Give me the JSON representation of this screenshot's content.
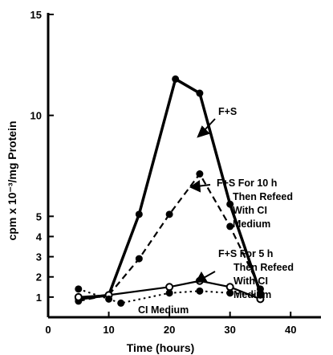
{
  "chart_data": {
    "type": "line",
    "title": "",
    "xlabel": "Time (hours)",
    "ylabel": "cpm x 10⁻³/mg Protein",
    "xlim": [
      0,
      45
    ],
    "ylim": [
      0,
      15
    ],
    "x_ticks": [
      0,
      10,
      20,
      30,
      40
    ],
    "y_ticks": [
      1,
      2,
      3,
      4,
      5,
      10,
      15
    ],
    "grid": false,
    "series": [
      {
        "label": "F+S",
        "style": "solid-thick",
        "marker": "filled",
        "x": [
          5,
          10,
          15,
          21,
          25,
          30,
          35
        ],
        "y": [
          0.9,
          1.1,
          5.1,
          11.8,
          11.1,
          5.6,
          1.2
        ]
      },
      {
        "label": "F+S For 10 h Then Refeed With CI Medium",
        "style": "dashed",
        "marker": "filled",
        "x": [
          5,
          10,
          15,
          20,
          25,
          30,
          35
        ],
        "y": [
          0.8,
          1.1,
          2.9,
          5.1,
          7.1,
          4.5,
          1.4
        ]
      },
      {
        "label": "F+S For 5 h Then Refeed With CI Medium",
        "style": "solid",
        "marker": "open",
        "x": [
          5,
          10,
          20,
          25,
          30,
          35
        ],
        "y": [
          1.0,
          1.1,
          1.5,
          1.8,
          1.5,
          0.9
        ]
      },
      {
        "label": "CI Medium",
        "style": "dotted",
        "marker": "filled",
        "x": [
          5,
          10,
          12,
          20,
          25,
          30,
          35
        ],
        "y": [
          1.4,
          0.9,
          0.7,
          1.2,
          1.3,
          1.2,
          1.1
        ]
      }
    ],
    "annotations": {
      "fs": "F+S",
      "fs10": [
        "F+S For 10 h",
        "Then Refeed",
        "With CI",
        "Medium"
      ],
      "fs5": [
        "F+S For 5 h",
        "Then Refeed",
        "With CI",
        "Medium"
      ],
      "ci": "CI Medium"
    }
  }
}
